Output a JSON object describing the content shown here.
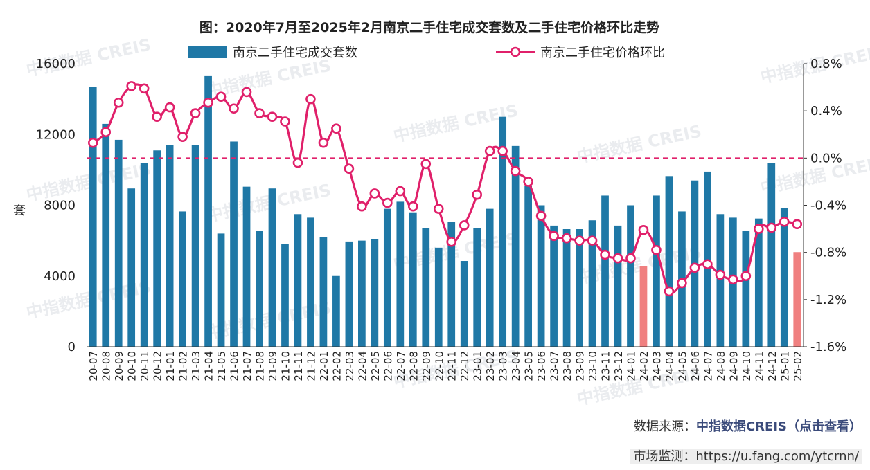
{
  "chart_data": {
    "type": "bar+line",
    "title": "图：2020年7月至2025年2月南京二手住宅成交套数及二手住宅价格环比走势",
    "ylabel": "套",
    "y_left": {
      "lim": [
        0,
        16000
      ],
      "ticks": [
        "0",
        "4000",
        "8000",
        "12000",
        "16000"
      ]
    },
    "y_right": {
      "lim": [
        -1.6,
        0.8
      ],
      "ticks": [
        "-1.6%",
        "-1.2%",
        "-0.8%",
        "-0.4%",
        "0.0%",
        "0.4%",
        "0.8%"
      ]
    },
    "categories": [
      "20-07",
      "20-08",
      "20-09",
      "20-10",
      "20-11",
      "20-12",
      "21-01",
      "21-02",
      "21-03",
      "21-04",
      "21-05",
      "21-06",
      "21-07",
      "21-08",
      "21-09",
      "21-10",
      "21-11",
      "21-12",
      "22-01",
      "22-02",
      "22-03",
      "22-04",
      "22-05",
      "22-06",
      "22-07",
      "22-08",
      "22-09",
      "22-10",
      "22-11",
      "22-12",
      "23-01",
      "23-02",
      "23-03",
      "23-04",
      "23-05",
      "23-06",
      "23-07",
      "23-08",
      "23-09",
      "23-10",
      "23-11",
      "23-12",
      "24-01",
      "24-02",
      "24-03",
      "24-04",
      "24-05",
      "24-06",
      "24-07",
      "24-08",
      "24-09",
      "24-10",
      "24-11",
      "24-12",
      "25-01",
      "25-02"
    ],
    "series": [
      {
        "name": "南京二手住宅成交套数",
        "type": "bar",
        "axis": "left",
        "color": "#1f78a6",
        "highlight_color": "#f08080",
        "highlight_categories": [
          "24-02",
          "25-02"
        ],
        "values": [
          14700,
          12600,
          11700,
          8950,
          10400,
          11100,
          11400,
          7650,
          11400,
          15300,
          6400,
          11600,
          9050,
          6550,
          8950,
          5800,
          7500,
          7300,
          6200,
          4000,
          5950,
          6000,
          6100,
          7800,
          8200,
          7600,
          6700,
          5600,
          7050,
          4850,
          6700,
          7800,
          13000,
          11350,
          9100,
          8000,
          6850,
          6650,
          6650,
          7150,
          8550,
          6850,
          8000,
          4550,
          8550,
          9650,
          7650,
          9400,
          9900,
          7500,
          7300,
          6550,
          7250,
          10400,
          7850,
          5350
        ]
      },
      {
        "name": "南京二手住宅价格环比",
        "type": "line",
        "axis": "right",
        "color": "#e0206a",
        "unit": "%",
        "values": [
          0.13,
          0.22,
          0.47,
          0.61,
          0.59,
          0.35,
          0.43,
          0.18,
          0.38,
          0.47,
          0.52,
          0.42,
          0.56,
          0.38,
          0.35,
          0.31,
          -0.04,
          0.5,
          0.13,
          0.25,
          -0.09,
          -0.41,
          -0.3,
          -0.38,
          -0.28,
          -0.41,
          -0.05,
          -0.43,
          -0.71,
          -0.57,
          -0.31,
          0.06,
          0.06,
          -0.11,
          -0.2,
          -0.49,
          -0.66,
          -0.68,
          -0.7,
          -0.7,
          -0.82,
          -0.85,
          -0.85,
          -0.61,
          -0.78,
          -1.13,
          -1.06,
          -0.93,
          -0.9,
          -0.99,
          -1.03,
          -1.0,
          -0.6,
          -0.59,
          -0.54,
          -0.56
        ]
      }
    ],
    "reference_line": {
      "axis": "right",
      "value": 0.0,
      "style": "dashed",
      "color": "#e0206a"
    },
    "legend": "top",
    "grid": false
  },
  "watermark": "中指数据  CREIS",
  "footer": {
    "source_prefix": "数据来源：",
    "source_link": "中指数据CREIS（点击查看）",
    "monitor": "市场监测：https://u.fang.com/ytcrnn/"
  }
}
